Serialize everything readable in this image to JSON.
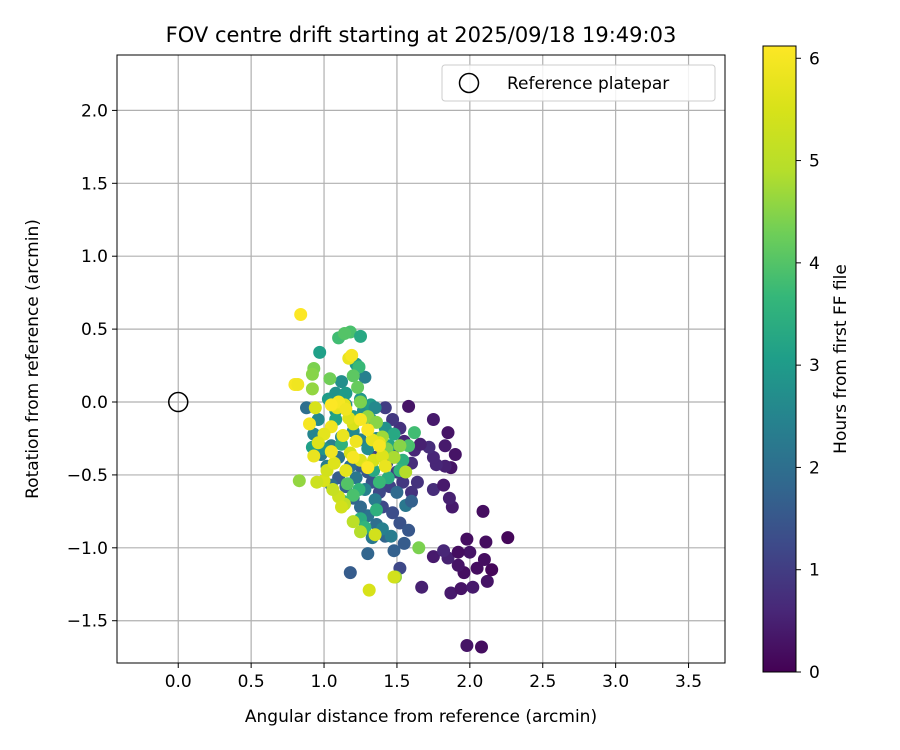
{
  "chart_data": {
    "type": "scatter",
    "title": "FOV centre drift starting at 2025/09/18 19:49:03",
    "xlabel": "Angular distance from reference (arcmin)",
    "ylabel": "Rotation from reference (arcmin)",
    "xlim": [
      -0.42,
      3.75
    ],
    "ylim": [
      -1.79,
      2.38
    ],
    "grid": true,
    "x_ticks": [
      "0.0",
      "0.5",
      "1.0",
      "1.5",
      "2.0",
      "2.5",
      "3.0",
      "3.5"
    ],
    "y_ticks": [
      "2.0",
      "1.5",
      "1.0",
      "0.5",
      "0.0",
      "−0.5",
      "−1.0",
      "−1.5"
    ],
    "legend": {
      "position": "top-right",
      "label": "Reference platepar"
    },
    "reference_point": {
      "x": 0.0,
      "y": 0.0
    },
    "colorbar": {
      "label": "Hours from first FF file",
      "range": [
        0,
        6.12
      ],
      "ticks": [
        "0",
        "1",
        "2",
        "3",
        "4",
        "5",
        "6"
      ],
      "colormap": "viridis"
    },
    "points": [
      [
        1.98,
        -1.67,
        0.3
      ],
      [
        2.08,
        -1.68,
        0.2
      ],
      [
        1.87,
        -1.31,
        0.4
      ],
      [
        1.94,
        -1.28,
        0.3
      ],
      [
        2.02,
        -1.27,
        0.4
      ],
      [
        2.12,
        -1.23,
        0.3
      ],
      [
        1.67,
        -1.27,
        0.5
      ],
      [
        1.96,
        -1.17,
        0.2
      ],
      [
        2.15,
        -1.15,
        0.1
      ],
      [
        2.05,
        -1.14,
        0.2
      ],
      [
        1.92,
        -1.12,
        0.3
      ],
      [
        2.1,
        -1.08,
        0.2
      ],
      [
        1.85,
        -1.07,
        0.5
      ],
      [
        1.75,
        -1.06,
        0.4
      ],
      [
        2.0,
        -1.03,
        0.3
      ],
      [
        1.92,
        -1.03,
        0.2
      ],
      [
        1.82,
        -1.02,
        0.6
      ],
      [
        2.11,
        -0.96,
        0.2
      ],
      [
        2.26,
        -0.93,
        0.1
      ],
      [
        1.98,
        -0.94,
        0.2
      ],
      [
        2.09,
        -0.75,
        0.2
      ],
      [
        1.88,
        -0.72,
        0.4
      ],
      [
        1.86,
        -0.66,
        0.5
      ],
      [
        1.75,
        -0.6,
        0.7
      ],
      [
        1.64,
        -0.55,
        0.8
      ],
      [
        1.82,
        -0.57,
        0.4
      ],
      [
        1.87,
        -0.45,
        0.3
      ],
      [
        1.83,
        -0.44,
        0.5
      ],
      [
        1.77,
        -0.43,
        0.6
      ],
      [
        1.75,
        -0.38,
        0.6
      ],
      [
        1.62,
        -0.33,
        0.6
      ],
      [
        1.72,
        -0.31,
        0.7
      ],
      [
        1.66,
        -0.29,
        0.5
      ],
      [
        1.83,
        -0.3,
        0.4
      ],
      [
        1.9,
        -0.36,
        0.3
      ],
      [
        1.75,
        -0.12,
        0.4
      ],
      [
        1.85,
        -0.21,
        0.3
      ],
      [
        1.58,
        -0.03,
        0.3
      ],
      [
        1.55,
        -0.27,
        0.6
      ],
      [
        1.6,
        -0.42,
        0.7
      ],
      [
        1.52,
        -0.18,
        0.8
      ],
      [
        1.47,
        -0.12,
        0.9
      ],
      [
        1.42,
        -0.04,
        1.0
      ],
      [
        1.47,
        -0.33,
        1.0
      ],
      [
        1.39,
        -0.28,
        1.2
      ],
      [
        1.35,
        -0.38,
        1.1
      ],
      [
        1.43,
        -0.42,
        1.3
      ],
      [
        1.5,
        -0.48,
        1.0
      ],
      [
        1.54,
        -0.55,
        0.9
      ],
      [
        1.6,
        -0.62,
        0.8
      ],
      [
        1.45,
        -0.58,
        1.1
      ],
      [
        1.38,
        -0.62,
        1.2
      ],
      [
        1.33,
        -0.55,
        1.4
      ],
      [
        1.3,
        -0.48,
        1.5
      ],
      [
        1.25,
        -0.44,
        1.6
      ],
      [
        1.4,
        -0.72,
        1.2
      ],
      [
        1.47,
        -0.76,
        1.3
      ],
      [
        1.52,
        -0.83,
        1.4
      ],
      [
        1.58,
        -0.88,
        1.5
      ],
      [
        1.55,
        -0.97,
        1.6
      ],
      [
        1.48,
        -1.02,
        1.7
      ],
      [
        1.52,
        -1.14,
        1.2
      ],
      [
        1.42,
        -0.92,
        1.8
      ],
      [
        1.36,
        -0.84,
        2.0
      ],
      [
        1.3,
        -0.78,
        2.1
      ],
      [
        1.25,
        -0.72,
        1.9
      ],
      [
        1.2,
        -0.66,
        1.8
      ],
      [
        1.15,
        -0.58,
        1.7
      ],
      [
        1.1,
        -0.52,
        1.6
      ],
      [
        1.05,
        -0.57,
        2.0
      ],
      [
        1.3,
        -1.04,
        1.8
      ],
      [
        1.18,
        -1.17,
        1.6
      ],
      [
        1.33,
        -0.93,
        2.2
      ],
      [
        1.4,
        -0.87,
        2.4
      ],
      [
        1.46,
        -0.92,
        2.3
      ],
      [
        1.56,
        -0.71,
        2.2
      ],
      [
        1.6,
        -0.68,
        1.7
      ],
      [
        1.5,
        -0.62,
        1.9
      ],
      [
        1.35,
        -0.67,
        2.3
      ],
      [
        1.28,
        -0.6,
        2.4
      ],
      [
        1.22,
        -0.52,
        2.2
      ],
      [
        1.18,
        -0.44,
        2.0
      ],
      [
        1.1,
        -0.38,
        2.1
      ],
      [
        1.02,
        -0.44,
        2.3
      ],
      [
        0.98,
        -0.36,
        2.2
      ],
      [
        1.05,
        -0.3,
        2.4
      ],
      [
        1.12,
        -0.24,
        2.5
      ],
      [
        1.2,
        -0.2,
        2.6
      ],
      [
        1.25,
        -0.26,
        2.4
      ],
      [
        1.3,
        -0.32,
        2.7
      ],
      [
        1.36,
        -0.25,
        2.6
      ],
      [
        1.42,
        -0.18,
        2.8
      ],
      [
        1.32,
        -0.12,
        2.9
      ],
      [
        1.27,
        -0.06,
        2.7
      ],
      [
        1.2,
        -0.1,
        3.0
      ],
      [
        1.15,
        -0.02,
        2.8
      ],
      [
        1.08,
        -0.06,
        2.9
      ],
      [
        1.03,
        0.02,
        3.0
      ],
      [
        0.88,
        -0.04,
        2.0
      ],
      [
        0.93,
        -0.22,
        2.5
      ],
      [
        0.96,
        -0.12,
        2.6
      ],
      [
        0.92,
        -0.31,
        3.1
      ],
      [
        1.0,
        -0.32,
        2.8
      ],
      [
        1.45,
        -0.3,
        3.2
      ],
      [
        1.48,
        -0.22,
        3.3
      ],
      [
        1.54,
        -0.4,
        3.5
      ],
      [
        1.58,
        -0.3,
        3.9
      ],
      [
        1.62,
        -0.21,
        3.8
      ],
      [
        1.52,
        -0.47,
        3.6
      ],
      [
        1.44,
        -0.52,
        3.4
      ],
      [
        1.38,
        -0.55,
        3.7
      ],
      [
        1.34,
        -0.47,
        3.3
      ],
      [
        1.25,
        -0.8,
        3.4
      ],
      [
        1.28,
        -0.86,
        3.6
      ],
      [
        1.36,
        -0.74,
        3.5
      ],
      [
        1.24,
        -0.6,
        3.6
      ],
      [
        1.2,
        -0.64,
        3.9
      ],
      [
        1.16,
        -0.56,
        4.0
      ],
      [
        1.13,
        -0.68,
        3.8
      ],
      [
        1.12,
        -0.29,
        3.5
      ],
      [
        1.08,
        -0.12,
        3.2
      ],
      [
        0.97,
        0.34,
        3.1
      ],
      [
        1.08,
        0.06,
        2.8
      ],
      [
        1.12,
        0.14,
        2.7
      ],
      [
        1.15,
        0.06,
        3.0
      ],
      [
        1.25,
        0.02,
        2.9
      ],
      [
        1.32,
        -0.02,
        3.0
      ],
      [
        1.35,
        -0.04,
        2.6
      ],
      [
        1.28,
        0.17,
        2.4
      ],
      [
        1.22,
        0.26,
        3.0
      ],
      [
        1.1,
        0.44,
        3.8
      ],
      [
        1.18,
        0.48,
        3.9
      ],
      [
        1.14,
        0.47,
        4.0
      ],
      [
        1.25,
        0.45,
        3.3
      ],
      [
        1.24,
        0.24,
        3.7
      ],
      [
        1.2,
        0.18,
        4.1
      ],
      [
        1.23,
        0.1,
        4.2
      ],
      [
        1.04,
        0.16,
        4.3
      ],
      [
        0.93,
        0.23,
        4.4
      ],
      [
        0.92,
        0.19,
        4.5
      ],
      [
        0.92,
        0.09,
        4.6
      ],
      [
        1.25,
        0.0,
        4.4
      ],
      [
        1.3,
        -0.1,
        4.6
      ],
      [
        1.36,
        -0.14,
        4.5
      ],
      [
        1.4,
        -0.24,
        4.7
      ],
      [
        1.43,
        -0.32,
        4.4
      ],
      [
        1.48,
        -0.38,
        4.8
      ],
      [
        1.52,
        -0.3,
        4.5
      ],
      [
        1.56,
        -0.48,
        4.9
      ],
      [
        1.65,
        -1.0,
        4.4
      ],
      [
        1.49,
        -1.2,
        4.6
      ],
      [
        1.35,
        -0.91,
        5.4
      ],
      [
        1.25,
        -0.89,
        4.9
      ],
      [
        1.2,
        -0.82,
        5.0
      ],
      [
        1.14,
        -0.7,
        5.1
      ],
      [
        1.1,
        -0.65,
        5.3
      ],
      [
        1.12,
        -0.72,
        5.4
      ],
      [
        1.06,
        -0.6,
        5.2
      ],
      [
        1.0,
        -0.54,
        5.5
      ],
      [
        0.95,
        -0.55,
        5.3
      ],
      [
        1.02,
        -0.47,
        5.4
      ],
      [
        1.07,
        -0.42,
        5.6
      ],
      [
        1.18,
        -0.35,
        5.5
      ],
      [
        1.15,
        -0.47,
        5.7
      ],
      [
        1.25,
        -0.4,
        5.6
      ],
      [
        1.3,
        -0.44,
        5.8
      ],
      [
        1.34,
        -0.4,
        5.5
      ],
      [
        1.4,
        -0.37,
        5.6
      ],
      [
        1.38,
        -0.28,
        5.7
      ],
      [
        1.33,
        -0.26,
        5.8
      ],
      [
        1.22,
        -0.27,
        5.9
      ],
      [
        1.2,
        -0.15,
        5.5
      ],
      [
        1.17,
        -0.11,
        5.6
      ],
      [
        1.14,
        -0.02,
        5.7
      ],
      [
        1.09,
        -0.04,
        5.8
      ],
      [
        1.05,
        -0.17,
        5.9
      ],
      [
        1.0,
        -0.22,
        5.7
      ],
      [
        0.96,
        -0.28,
        5.6
      ],
      [
        0.93,
        -0.37,
        5.8
      ],
      [
        0.94,
        -0.04,
        5.5
      ],
      [
        0.9,
        -0.15,
        6.0
      ],
      [
        0.8,
        0.12,
        6.0
      ],
      [
        0.82,
        0.12,
        5.9
      ],
      [
        0.84,
        0.6,
        6.1
      ],
      [
        1.1,
        0.0,
        6.0
      ],
      [
        1.05,
        -0.02,
        6.1
      ],
      [
        1.15,
        -0.05,
        5.9
      ],
      [
        1.17,
        0.3,
        5.8
      ],
      [
        1.19,
        0.32,
        6.0
      ],
      [
        1.25,
        -0.12,
        6.0
      ],
      [
        1.3,
        -0.19,
        6.1
      ],
      [
        1.38,
        -0.3,
        6.0
      ],
      [
        1.42,
        -0.44,
        5.8
      ],
      [
        1.3,
        -0.45,
        6.1
      ],
      [
        1.2,
        -0.38,
        6.0
      ],
      [
        1.05,
        -0.34,
        5.9
      ],
      [
        1.13,
        -0.23,
        5.8
      ],
      [
        1.31,
        -1.29,
        5.5
      ],
      [
        0.83,
        -0.54,
        4.6
      ],
      [
        1.48,
        -1.2,
        5.4
      ]
    ]
  }
}
